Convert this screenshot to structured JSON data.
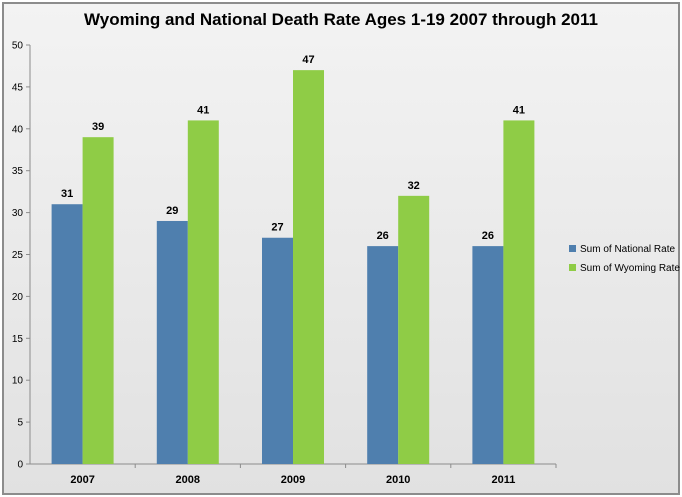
{
  "chart_data": {
    "type": "bar",
    "title": "Wyoming and National Death Rate Ages 1-19 2007 through 2011",
    "xlabel": "",
    "ylabel": "",
    "categories": [
      "2007",
      "2008",
      "2009",
      "2010",
      "2011"
    ],
    "series": [
      {
        "name": "Sum of National Rate",
        "values": [
          31,
          29,
          27,
          26,
          26
        ],
        "color": "#4f7fae"
      },
      {
        "name": "Sum of Wyoming Rate",
        "values": [
          39,
          41,
          47,
          32,
          41
        ],
        "color": "#8fcc46"
      }
    ],
    "ylim": [
      0,
      50
    ],
    "yticks": [
      0,
      5,
      10,
      15,
      20,
      25,
      30,
      35,
      40,
      45,
      50
    ],
    "data_labels": true,
    "grid": false,
    "legend_position": "right"
  }
}
